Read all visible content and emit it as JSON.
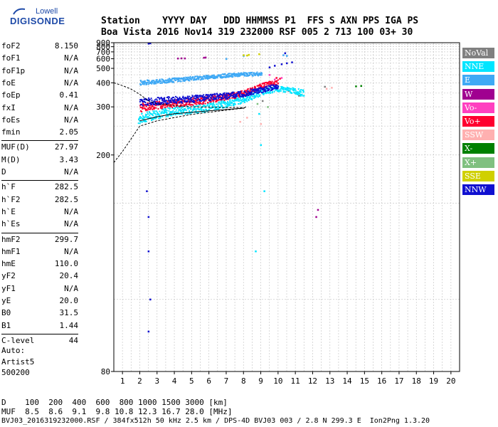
{
  "logo": {
    "line1": "Lowell",
    "line2": "DIGISONDE"
  },
  "header": {
    "line1": "Station    YYYY DAY   DDD HHMMSS P1  FFS S AXN PPS IGA PS",
    "line2": "Boa Vista 2016 Nov14 319 232000 RSF 005 2 713 100 03+ 30"
  },
  "parameters": [
    {
      "name": "foF2",
      "value": "8.150"
    },
    {
      "name": "foF1",
      "value": "N/A"
    },
    {
      "name": "foF1p",
      "value": "N/A"
    },
    {
      "name": "foE",
      "value": "N/A"
    },
    {
      "name": "foEp",
      "value": "0.41"
    },
    {
      "name": "fxI",
      "value": "N/A"
    },
    {
      "name": "foEs",
      "value": "N/A"
    },
    {
      "name": "fmin",
      "value": "2.05"
    },
    {
      "name": "MUF(D)",
      "value": "27.97"
    },
    {
      "name": "M(D)",
      "value": "3.43"
    },
    {
      "name": "D",
      "value": "N/A"
    },
    {
      "name": "h`F",
      "value": "282.5"
    },
    {
      "name": "h`F2",
      "value": "282.5"
    },
    {
      "name": "h`E",
      "value": "N/A"
    },
    {
      "name": "h`Es",
      "value": "N/A"
    },
    {
      "name": "hmF2",
      "value": "299.7"
    },
    {
      "name": "hmF1",
      "value": "N/A"
    },
    {
      "name": "hmE",
      "value": "110.0"
    },
    {
      "name": "yF2",
      "value": "20.4"
    },
    {
      "name": "yF1",
      "value": "N/A"
    },
    {
      "name": "yE",
      "value": "20.0"
    },
    {
      "name": "B0",
      "value": "31.5"
    },
    {
      "name": "B1",
      "value": "1.44"
    },
    {
      "name": "C-level",
      "value": "44"
    }
  ],
  "auto": {
    "line1": "Auto:",
    "line2": "Artist5",
    "line3": "500200"
  },
  "legend": [
    {
      "label": "NoVal",
      "color": "#808080"
    },
    {
      "label": "NNE",
      "color": "#00e5ff"
    },
    {
      "label": "E",
      "color": "#3fa9f5"
    },
    {
      "label": "W",
      "color": "#a00090"
    },
    {
      "label": "Vo-",
      "color": "#ff40c0"
    },
    {
      "label": "Vo+",
      "color": "#ff0030"
    },
    {
      "label": "SSW",
      "color": "#ffb0b0"
    },
    {
      "label": "X-",
      "color": "#008000"
    },
    {
      "label": "X+",
      "color": "#80c080"
    },
    {
      "label": "SSE",
      "color": "#d0d000"
    },
    {
      "label": "NNW",
      "color": "#1010d0"
    }
  ],
  "footer": {
    "distance": "D    100  200  400  600  800 1000 1500 3000 [km]",
    "muf": "MUF  8.5  8.6  9.1  9.8 10.8 12.3 16.7 28.0 [MHz]",
    "info": "BVJ03_2016319232000.RSF / 384fx512h 50 kHz 2.5 km / DPS-4D BVJ03 003 / 2.8 N 299.3 E  Ion2Png 1.3.20"
  },
  "chart_data": {
    "type": "scatter",
    "title": "",
    "xlabel": "",
    "ylabel": "",
    "xlim": [
      0.5,
      20.5
    ],
    "ylim": [
      80,
      900
    ],
    "x_ticks": [
      1,
      2,
      3,
      4,
      5,
      6,
      7,
      8,
      9,
      10,
      11,
      12,
      13,
      14,
      15,
      16,
      17,
      18,
      19,
      20
    ],
    "y_ticks": [
      80,
      200,
      300,
      400,
      500,
      600,
      700,
      800,
      900
    ],
    "y_scale": "reciprocal",
    "grid": true,
    "legend_position": "right",
    "series": [
      {
        "name": "NoVal",
        "color": "#808080",
        "points": [
          [
            9.1,
            320
          ],
          [
            10.6,
            360
          ],
          [
            11.2,
            340
          ],
          [
            12.7,
            380
          ]
        ]
      },
      {
        "name": "NNE",
        "color": "#00e5ff",
        "band": [
          [
            1.9,
            268
          ],
          [
            2.5,
            276
          ],
          [
            3,
            282
          ],
          [
            4,
            290
          ],
          [
            5,
            296
          ],
          [
            6,
            302
          ],
          [
            7,
            312
          ],
          [
            8,
            328
          ],
          [
            8.6,
            344
          ],
          [
            9.2,
            362
          ],
          [
            10,
            372
          ],
          [
            11,
            362
          ],
          [
            11.5,
            352
          ]
        ],
        "points": [
          [
            8.9,
            280
          ],
          [
            9,
            215
          ],
          [
            9.2,
            160
          ],
          [
            8.7,
            120
          ],
          [
            11.3,
            340
          ]
        ]
      },
      {
        "name": "E",
        "color": "#3fa9f5",
        "band": [
          [
            2,
            405
          ],
          [
            3,
            410
          ],
          [
            4,
            420
          ],
          [
            5,
            430
          ],
          [
            6,
            440
          ],
          [
            7,
            450
          ],
          [
            8,
            458
          ],
          [
            9,
            462
          ]
        ],
        "points": [
          [
            7,
            600
          ],
          [
            8,
            640
          ],
          [
            10.3,
            650
          ],
          [
            10.5,
            640
          ]
        ]
      },
      {
        "name": "W",
        "color": "#a00090",
        "points": [
          [
            4.2,
            605
          ],
          [
            4.4,
            607
          ],
          [
            4.6,
            606
          ],
          [
            12.2,
            140
          ],
          [
            12.3,
            145
          ],
          [
            5.7,
            615
          ],
          [
            5.8,
            618
          ]
        ]
      },
      {
        "name": "Vo-",
        "color": "#ff40c0",
        "points": [
          [
            9.5,
            450
          ],
          [
            9.8,
            420
          ],
          [
            9.2,
            400
          ],
          [
            10.2,
            430
          ]
        ]
      },
      {
        "name": "Vo+",
        "color": "#ff0030",
        "band": [
          [
            2,
            300
          ],
          [
            3,
            308
          ],
          [
            4,
            314
          ],
          [
            5,
            320
          ],
          [
            6,
            328
          ],
          [
            7,
            338
          ],
          [
            8,
            352
          ],
          [
            8.6,
            372
          ],
          [
            9.2,
            392
          ],
          [
            10,
            410
          ]
        ],
        "points": [
          [
            9.9,
            430
          ],
          [
            10.1,
            425
          ]
        ]
      },
      {
        "name": "SSW",
        "color": "#ffb0b0",
        "points": [
          [
            7.8,
            260
          ],
          [
            8.2,
            270
          ],
          [
            9,
            255
          ],
          [
            12.8,
            370
          ],
          [
            13.1,
            375
          ]
        ]
      },
      {
        "name": "X-",
        "color": "#008000",
        "points": [
          [
            14.5,
            382
          ],
          [
            14.8,
            384
          ]
        ]
      },
      {
        "name": "X+",
        "color": "#80c080",
        "points": [
          [
            8.8,
            310
          ],
          [
            9.4,
            300
          ]
        ]
      },
      {
        "name": "SSE",
        "color": "#d0d000",
        "points": [
          [
            8.0,
            650
          ],
          [
            8.2,
            645
          ],
          [
            8.3,
            655
          ],
          [
            8.9,
            665
          ]
        ]
      },
      {
        "name": "NNW",
        "color": "#1010d0",
        "band": [
          [
            2,
            318
          ],
          [
            3,
            322
          ],
          [
            4,
            326
          ],
          [
            5,
            330
          ],
          [
            6,
            335
          ],
          [
            7,
            342
          ],
          [
            8,
            352
          ],
          [
            9,
            368
          ],
          [
            10,
            386
          ]
        ],
        "points": [
          [
            2.5,
            880
          ],
          [
            2.6,
            888
          ],
          [
            9.5,
            510
          ],
          [
            9.8,
            525
          ],
          [
            10.2,
            540
          ],
          [
            10.5,
            550
          ],
          [
            10.8,
            560
          ],
          [
            10.4,
            680
          ],
          [
            2.4,
            160
          ],
          [
            2.5,
            140
          ],
          [
            2.5,
            120
          ],
          [
            2.6,
            100
          ],
          [
            2.5,
            90
          ]
        ]
      }
    ],
    "traces": [
      {
        "name": "profile-lower",
        "color": "#000000",
        "points": [
          [
            0.5,
            190
          ],
          [
            1,
            205
          ],
          [
            1.5,
            225
          ],
          [
            2,
            250
          ],
          [
            3,
            262
          ],
          [
            4,
            270
          ],
          [
            5,
            278
          ],
          [
            6,
            284
          ],
          [
            7,
            290
          ],
          [
            8,
            296
          ],
          [
            8.15,
            298
          ]
        ]
      },
      {
        "name": "profile-upper",
        "color": "#000000",
        "points": [
          [
            0.5,
            400
          ],
          [
            1,
            385
          ],
          [
            1.5,
            368
          ],
          [
            2,
            345
          ],
          [
            2.5,
            320
          ],
          [
            3,
            310
          ],
          [
            4,
            304
          ],
          [
            5,
            300
          ],
          [
            6,
            299
          ],
          [
            7,
            298
          ],
          [
            8,
            298
          ]
        ]
      },
      {
        "name": "trace-low",
        "color": "#000000",
        "points": [
          [
            2,
            262
          ],
          [
            3,
            272
          ],
          [
            4,
            280
          ],
          [
            5,
            284
          ],
          [
            6,
            288
          ],
          [
            7,
            292
          ],
          [
            8,
            296
          ],
          [
            8.15,
            300
          ]
        ]
      }
    ]
  }
}
